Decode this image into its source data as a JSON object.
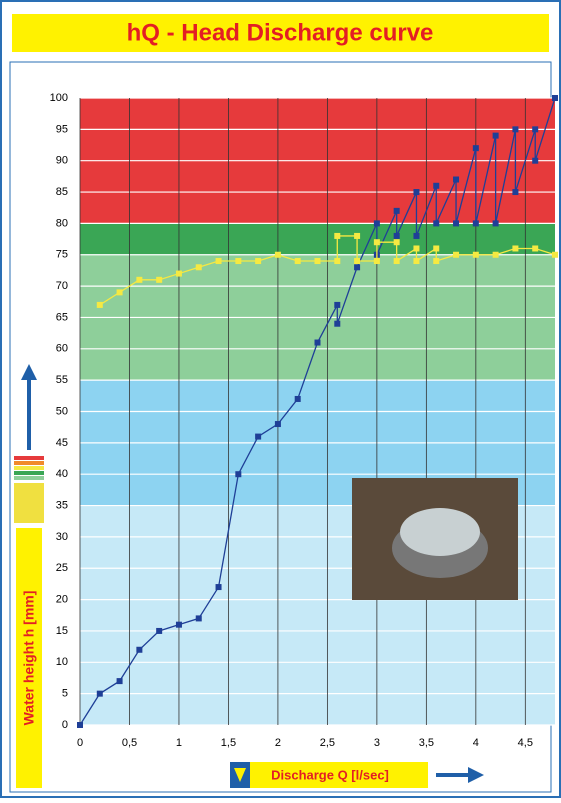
{
  "chart_data": {
    "type": "line",
    "title": "hQ - Head Discharge curve",
    "x_label": "Discharge Q [l/sec]",
    "y_label": "Water height h [mm]",
    "xlim": [
      0,
      4.8
    ],
    "ylim": [
      0,
      100
    ],
    "xticks": [
      0,
      {
        "value": 0.5,
        "label": "0,5"
      },
      1,
      {
        "value": 1.5,
        "label": "1,5"
      },
      2,
      {
        "value": 2.5,
        "label": "2,5"
      },
      3,
      {
        "value": 3.5,
        "label": "3,5"
      },
      4,
      {
        "value": 4.5,
        "label": "4,5"
      }
    ],
    "yticks": [
      0,
      5,
      10,
      15,
      20,
      25,
      30,
      35,
      40,
      45,
      50,
      55,
      60,
      65,
      70,
      75,
      80,
      85,
      90,
      95,
      100
    ],
    "grid": true,
    "bands": [
      {
        "from": 0,
        "to": 35,
        "color": "#c6e9f7"
      },
      {
        "from": 35,
        "to": 55,
        "color": "#8dd3f1"
      },
      {
        "from": 55,
        "to": 75,
        "color": "#8ecf9a"
      },
      {
        "from": 75,
        "to": 80,
        "color": "#3aa655"
      },
      {
        "from": 80,
        "to": 100,
        "color": "#e63a3c"
      }
    ],
    "series": [
      {
        "color": "#1f3f97",
        "x": [
          0,
          0.2,
          0.4,
          0.6,
          0.8,
          1.0,
          1.2,
          1.4,
          1.6,
          1.8,
          2.0,
          2.2,
          2.4,
          2.6,
          2.6,
          2.8,
          3.0,
          3.0,
          3.2,
          3.2,
          3.4,
          3.4,
          3.6,
          3.6,
          3.8,
          3.8,
          4.0,
          4.0,
          4.2,
          4.2,
          4.4,
          4.4,
          4.6,
          4.6,
          4.8
        ],
        "values": [
          0,
          5,
          7,
          12,
          15,
          16,
          17,
          22,
          40,
          46,
          48,
          52,
          61,
          67,
          64,
          73,
          80,
          75,
          82,
          78,
          85,
          78,
          86,
          80,
          87,
          80,
          92,
          80,
          94,
          80,
          95,
          85,
          95,
          90,
          100
        ]
      },
      {
        "color": "#f5e942",
        "x": [
          0.2,
          0.4,
          0.6,
          0.8,
          1.0,
          1.2,
          1.4,
          1.6,
          1.8,
          2.0,
          2.2,
          2.4,
          2.6,
          2.6,
          2.8,
          2.8,
          3.0,
          3.0,
          3.2,
          3.2,
          3.4,
          3.4,
          3.6,
          3.6,
          3.8,
          4.0,
          4.2,
          4.4,
          4.6,
          4.8
        ],
        "values": [
          67,
          69,
          71,
          71,
          72,
          73,
          74,
          74,
          74,
          75,
          74,
          74,
          74,
          78,
          78,
          74,
          74,
          77,
          77,
          74,
          76,
          74,
          76,
          74,
          75,
          75,
          75,
          76,
          76,
          75
        ]
      }
    ]
  }
}
